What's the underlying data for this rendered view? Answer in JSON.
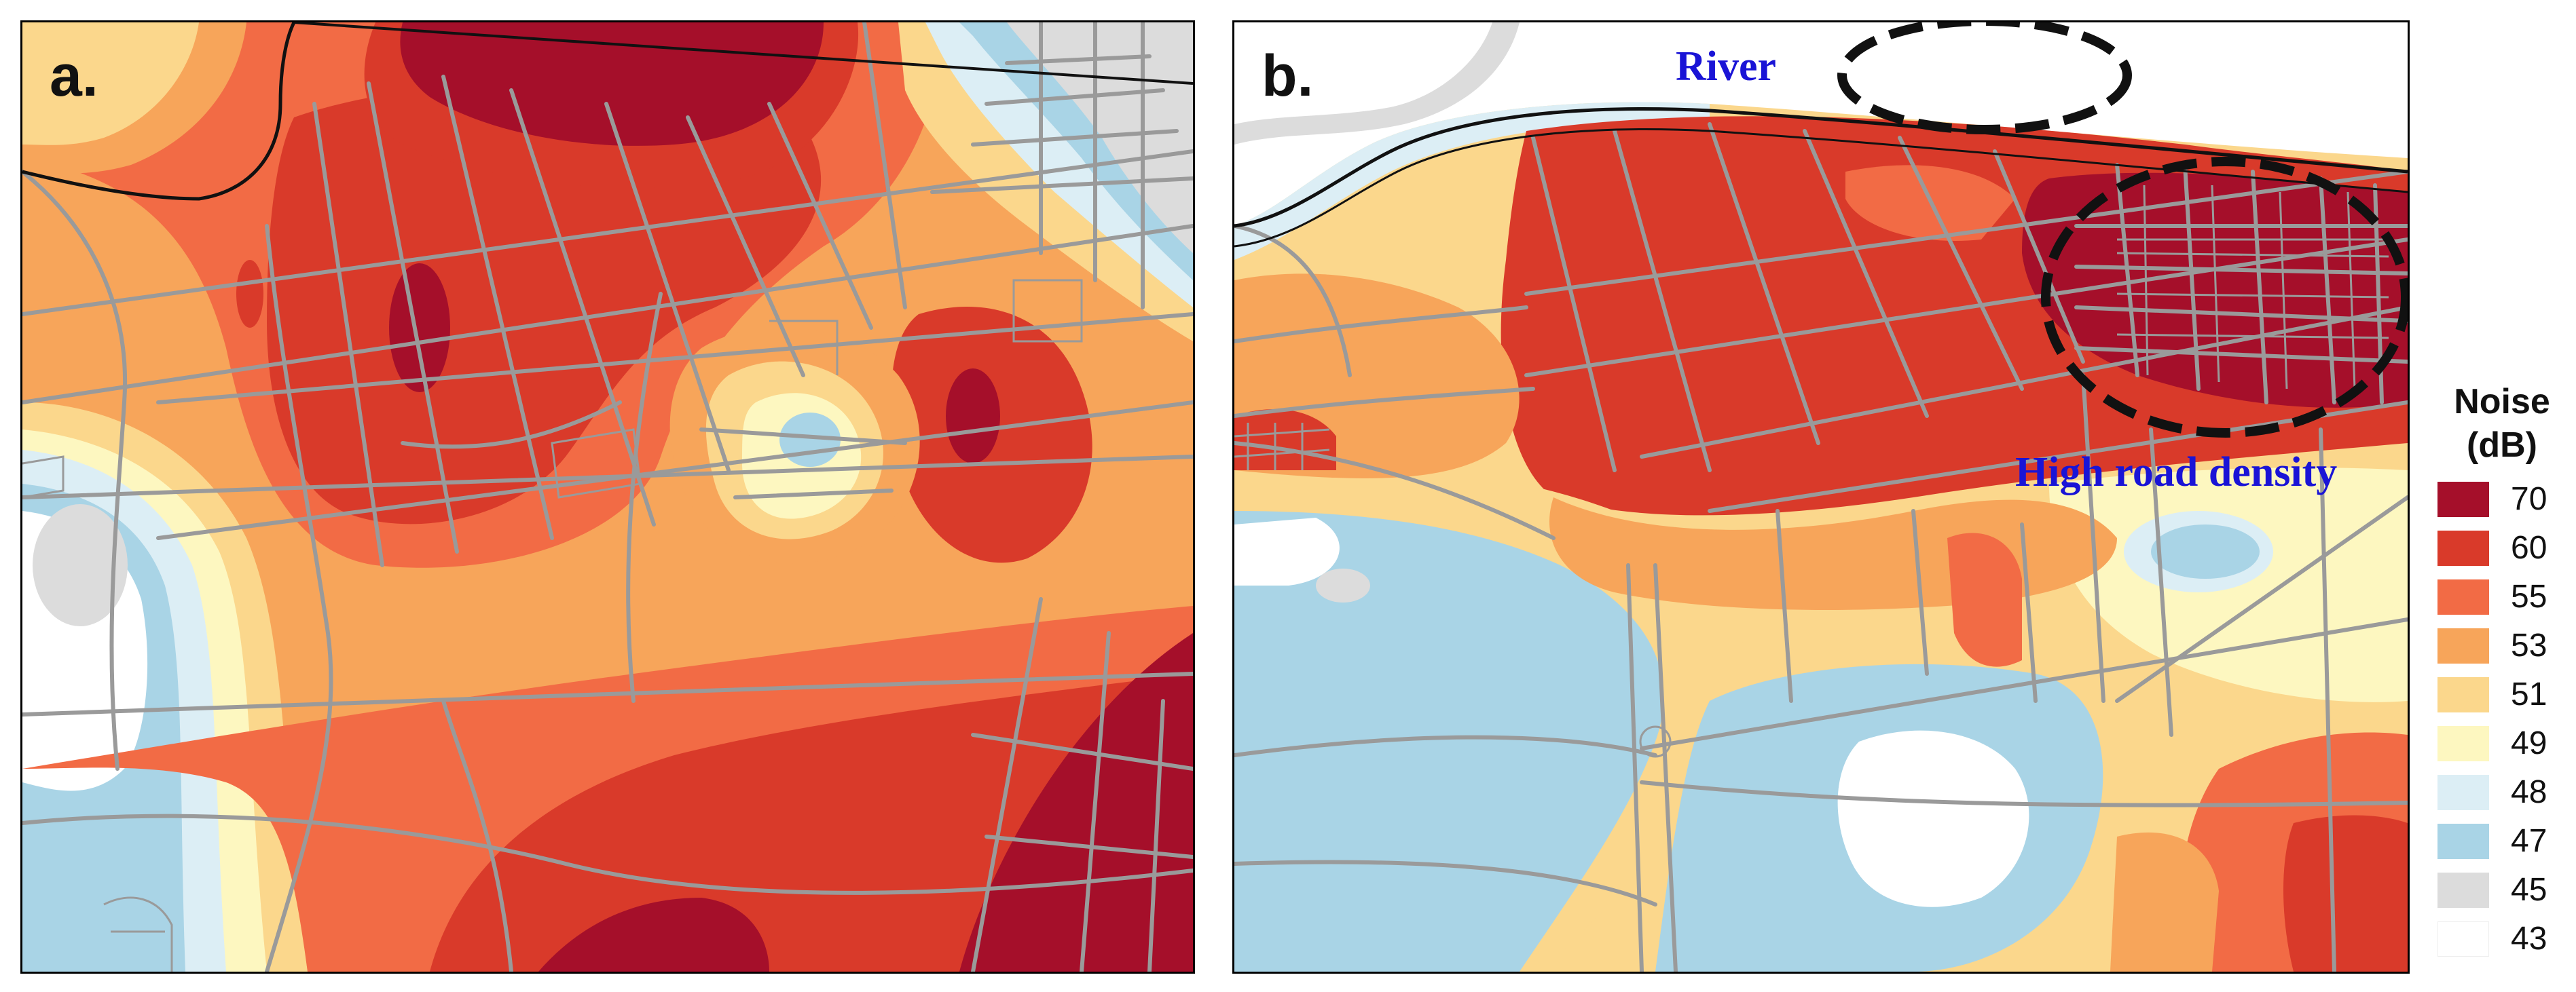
{
  "panel_a": {
    "label": "a."
  },
  "panel_b": {
    "label": "b.",
    "annotations": {
      "river": "River",
      "high_road_density": "High road density"
    }
  },
  "legend": {
    "title_line1": "Noise",
    "title_line2": "(dB)",
    "items": [
      {
        "label": "70",
        "color": "#a50f2a"
      },
      {
        "label": "60",
        "color": "#d93a2a"
      },
      {
        "label": "55",
        "color": "#f26b45"
      },
      {
        "label": "53",
        "color": "#f7a55a"
      },
      {
        "label": "51",
        "color": "#fbd78c"
      },
      {
        "label": "49",
        "color": "#fdf7c0"
      },
      {
        "label": "48",
        "color": "#dceef5"
      },
      {
        "label": "47",
        "color": "#a9d4e6"
      },
      {
        "label": "45",
        "color": "#dcdcdc"
      },
      {
        "label": "43",
        "color": "#ffffff"
      }
    ]
  },
  "map_colors": {
    "road": "#9a9a9a",
    "river_line": "#111111",
    "circle": "#111111"
  }
}
